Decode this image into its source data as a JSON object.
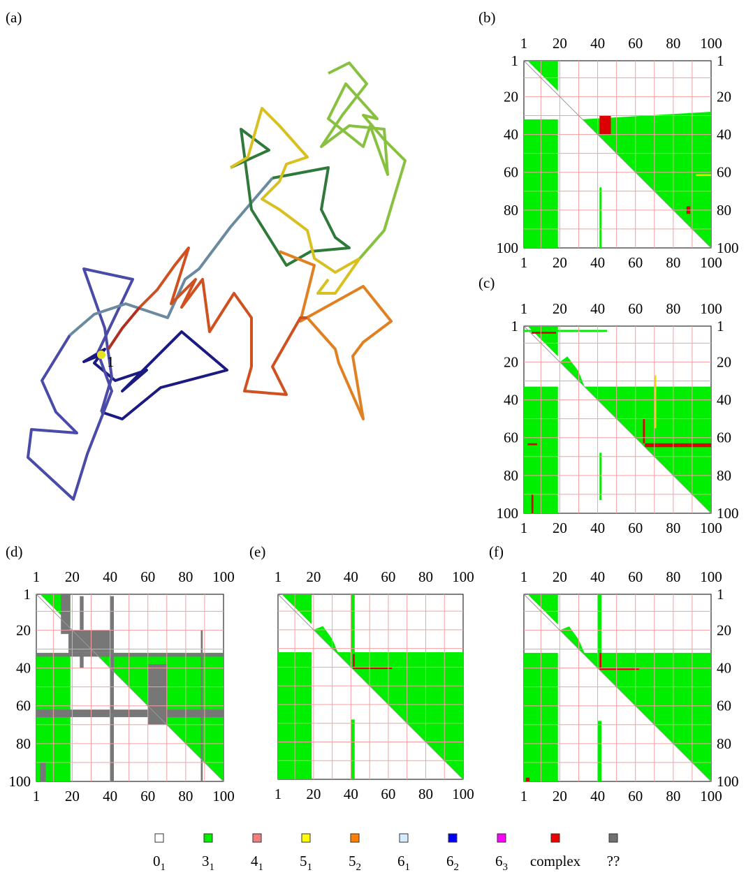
{
  "panels": [
    {
      "label": "(a)"
    },
    {
      "label": "(b)"
    },
    {
      "label": "(c)"
    },
    {
      "label": "(d)"
    },
    {
      "label": "(e)"
    },
    {
      "label": "(f)"
    }
  ],
  "ticks": [
    1,
    20,
    40,
    60,
    80,
    100
  ],
  "chain_start_label": "1",
  "legend": [
    {
      "color": "#ffffff",
      "main": "0",
      "sub": "1"
    },
    {
      "color": "#00ee00",
      "main": "3",
      "sub": "1"
    },
    {
      "color": "#f08080",
      "main": "4",
      "sub": "1"
    },
    {
      "color": "#ffff00",
      "main": "5",
      "sub": "1"
    },
    {
      "color": "#ff8000",
      "main": "5",
      "sub": "2"
    },
    {
      "color": "#d8ecff",
      "main": "6",
      "sub": "1"
    },
    {
      "color": "#0000ff",
      "main": "6",
      "sub": "2"
    },
    {
      "color": "#ff00ff",
      "main": "6",
      "sub": "3"
    },
    {
      "color": "#ee0000",
      "main": "complex"
    },
    {
      "color": "#707070",
      "main": "??"
    }
  ]
}
